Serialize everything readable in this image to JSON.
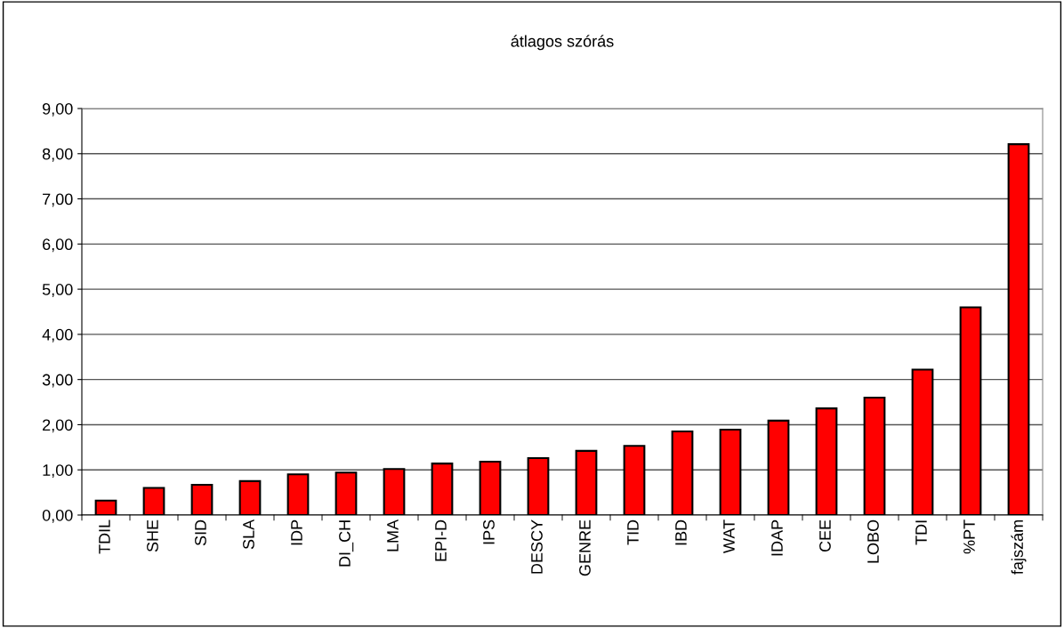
{
  "chart_data": {
    "type": "bar",
    "title": "átlagos szórás",
    "categories": [
      "TDIL",
      "SHE",
      "SID",
      "SLA",
      "IDP",
      "DI_CH",
      "LMA",
      "EPI-D",
      "IPS",
      "DESCY",
      "GENRE",
      "TID",
      "IBD",
      "WAT",
      "IDAP",
      "CEE",
      "LOBO",
      "TDI",
      "%PT",
      "fajszám"
    ],
    "values": [
      0.32,
      0.6,
      0.67,
      0.75,
      0.9,
      0.94,
      1.02,
      1.14,
      1.18,
      1.26,
      1.42,
      1.53,
      1.85,
      1.89,
      2.09,
      2.36,
      2.6,
      3.22,
      4.6,
      8.21
    ],
    "color": "#ff0000",
    "ylim": [
      0,
      9
    ],
    "yticks": [
      {
        "value": 0,
        "label": "0,00"
      },
      {
        "value": 1,
        "label": "1,00"
      },
      {
        "value": 2,
        "label": "2,00"
      },
      {
        "value": 3,
        "label": "3,00"
      },
      {
        "value": 4,
        "label": "4,00"
      },
      {
        "value": 5,
        "label": "5,00"
      },
      {
        "value": 6,
        "label": "6,00"
      },
      {
        "value": 7,
        "label": "7,00"
      },
      {
        "value": 8,
        "label": "8,00"
      },
      {
        "value": 9,
        "label": "9,00"
      }
    ],
    "grid": "y"
  }
}
